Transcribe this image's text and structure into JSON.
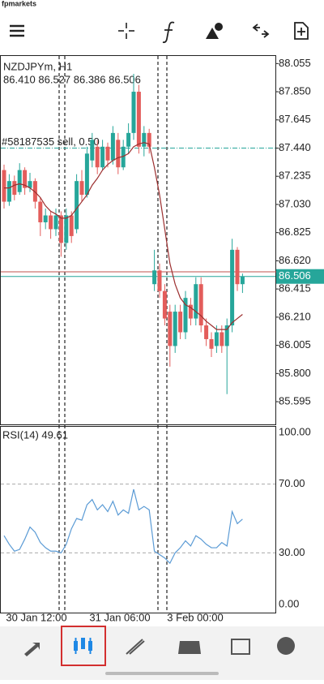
{
  "header": {
    "logo": "fpmarkets"
  },
  "chart_data": {
    "type": "candlestick",
    "title": "NZDJPYm, H1",
    "subtitle": "86.410 86.527 86.386 86.506",
    "order_label": "#58187535 sell, 0.50",
    "order_price": 87.44,
    "last_price": 86.506,
    "ask_price": 86.54,
    "up_color": "#26a69a",
    "down_color": "#e35d5b",
    "ma_color": "#9c2f2f",
    "rsi_color": "#5b9bd5",
    "ylim": [
      85.43,
      88.11
    ],
    "yticks": [
      88.055,
      {
        "value": 87.85,
        "label": "87.850"
      },
      87.645,
      {
        "value": 87.44,
        "label": "87.440"
      },
      87.235,
      {
        "value": 87.03,
        "label": "87.030"
      },
      86.825,
      {
        "value": 86.62,
        "label": "86.620"
      },
      86.415,
      {
        "value": 86.21,
        "label": "86.210"
      },
      86.005,
      {
        "value": 85.8,
        "label": "85.800"
      },
      85.595
    ],
    "open": [
      87.28,
      87.05,
      87.2,
      87.12,
      87.28,
      87.15,
      87.2,
      87.05,
      86.9,
      86.95,
      86.85,
      86.95,
      86.75,
      86.95,
      86.85,
      87.2,
      87.1,
      87.35,
      87.45,
      87.3,
      87.45,
      87.35,
      87.5,
      87.3,
      87.45,
      87.55,
      87.85,
      87.45,
      87.55,
      86.45,
      86.55,
      86.4,
      86.25,
      86.0,
      86.25,
      86.1,
      86.3,
      86.2,
      86.45,
      86.15,
      86.05,
      86.0,
      86.1,
      86.0,
      86.15,
      86.7,
      86.45
    ],
    "close": [
      87.05,
      87.2,
      87.1,
      87.28,
      87.15,
      87.2,
      87.05,
      86.9,
      86.95,
      86.85,
      86.95,
      86.75,
      86.95,
      86.8,
      87.2,
      87.1,
      87.4,
      87.5,
      87.3,
      87.45,
      87.35,
      87.55,
      87.3,
      87.45,
      87.55,
      87.85,
      87.45,
      87.55,
      87.45,
      86.55,
      86.4,
      86.2,
      86.0,
      86.25,
      86.1,
      86.35,
      86.2,
      86.45,
      86.15,
      86.05,
      85.98,
      86.1,
      86.0,
      86.15,
      86.7,
      86.45,
      86.506
    ],
    "high": [
      87.32,
      87.25,
      87.24,
      87.33,
      87.3,
      87.26,
      87.22,
      87.08,
      87.0,
      86.98,
      87.0,
      86.98,
      87.0,
      86.98,
      87.25,
      87.28,
      87.45,
      87.55,
      87.5,
      87.5,
      87.48,
      87.6,
      87.55,
      87.5,
      87.62,
      87.98,
      87.9,
      87.6,
      87.58,
      86.7,
      86.6,
      86.45,
      86.3,
      86.3,
      86.3,
      86.4,
      86.35,
      86.5,
      86.5,
      86.2,
      86.1,
      86.15,
      86.15,
      86.2,
      86.78,
      86.72,
      86.527
    ],
    "low": [
      87.0,
      87.02,
      87.06,
      87.1,
      87.1,
      87.12,
      87.0,
      86.8,
      86.85,
      86.78,
      86.8,
      86.65,
      86.7,
      86.75,
      86.82,
      87.05,
      87.08,
      87.3,
      87.25,
      87.28,
      87.3,
      87.32,
      87.25,
      87.28,
      87.4,
      87.5,
      87.4,
      87.38,
      87.4,
      86.4,
      86.35,
      86.15,
      85.85,
      85.95,
      86.05,
      86.05,
      86.15,
      86.15,
      86.1,
      86.0,
      85.92,
      85.95,
      85.95,
      85.65,
      86.1,
      86.4,
      86.386
    ],
    "ma": [
      87.15,
      87.15,
      87.17,
      87.18,
      87.17,
      87.15,
      87.12,
      87.08,
      87.02,
      86.98,
      86.96,
      86.93,
      86.93,
      86.95,
      87.0,
      87.05,
      87.1,
      87.17,
      87.22,
      87.28,
      87.32,
      87.35,
      87.37,
      87.38,
      87.4,
      87.45,
      87.47,
      87.48,
      87.47,
      87.3,
      87.1,
      86.85,
      86.6,
      86.45,
      86.35,
      86.3,
      86.28,
      86.25,
      86.22,
      86.18,
      86.15,
      86.12,
      86.12,
      86.12,
      86.17,
      86.2,
      86.23
    ],
    "rsi_title": "RSI(14) 49.61",
    "rsi_ylim": [
      0,
      100
    ],
    "rsi_yticks": [
      {
        "value": 100,
        "label": "100.00"
      },
      {
        "value": 70,
        "label": "70.00"
      },
      {
        "value": 30,
        "label": "30.00"
      },
      {
        "value": 0,
        "label": "0.00"
      }
    ],
    "rsi": [
      40,
      35,
      31,
      32,
      38,
      45,
      42,
      36,
      33,
      31,
      31,
      30,
      35,
      44,
      50,
      49,
      58,
      61,
      55,
      58,
      54,
      60,
      52,
      55,
      53,
      67,
      55,
      57,
      55,
      31,
      29,
      27,
      24,
      30,
      33,
      37,
      34,
      40,
      38,
      35,
      33,
      33,
      36,
      34,
      54,
      47,
      49.61
    ],
    "time_labels": [
      "30 Jan 12:00",
      "31 Jan 06:00",
      "3 Feb 00:00"
    ]
  }
}
